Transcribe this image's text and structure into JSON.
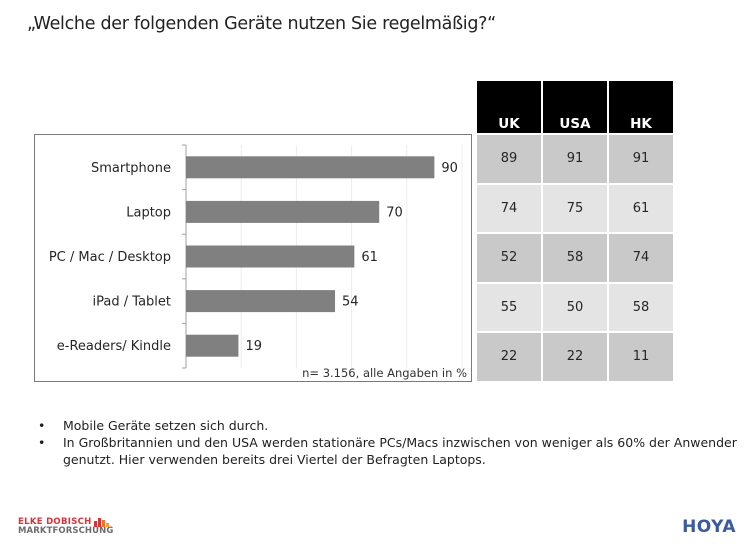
{
  "title": "„Welche der folgenden Geräte nutzen Sie regelmäßig?“",
  "chart_data": {
    "type": "bar",
    "orientation": "horizontal",
    "title": "„Welche der folgenden Geräte nutzen Sie regelmäßig?“",
    "categories": [
      "Smartphone",
      "Laptop",
      "PC / Mac / Desktop",
      "iPad / Tablet",
      "e-Readers/ Kindle"
    ],
    "values": [
      90,
      70,
      61,
      54,
      19
    ],
    "xlabel": "",
    "ylabel": "",
    "xlim": [
      0,
      100
    ],
    "grid": true,
    "grid_step": 20,
    "legend": "none",
    "bar_color": "#808080",
    "note": "n= 3.156, alle Angaben in %"
  },
  "table": {
    "columns": [
      "UK",
      "USA",
      "HK"
    ],
    "rows": [
      {
        "category": "Smartphone",
        "values": [
          "89",
          "91",
          "91"
        ]
      },
      {
        "category": "Laptop",
        "values": [
          "74",
          "75",
          "61"
        ]
      },
      {
        "category": "PC / Mac / Desktop",
        "values": [
          "52",
          "58",
          "74"
        ]
      },
      {
        "category": "iPad / Tablet",
        "values": [
          "55",
          "50",
          "58"
        ]
      },
      {
        "category": "e-Readers/ Kindle",
        "values": [
          "22",
          "22",
          "11"
        ]
      }
    ]
  },
  "bullets": [
    "Mobile Geräte setzen sich durch.",
    "In Großbritannien und den USA werden stationäre PCs/Macs inzwischen von weniger als 60% der Anwender genutzt. Hier verwenden bereits drei Viertel der Befragten Laptops."
  ],
  "logos": {
    "left_line1": "ELKE DOBISCH",
    "left_line2": "MARKTFORSCHUNG",
    "right": "HOYA"
  },
  "colors": {
    "bar": "#808080",
    "table_header": "#000000",
    "table_row_dark": "#c9c9c9",
    "table_row_light": "#e4e4e4",
    "logo_red": "#d7333a",
    "logo_blue": "#3b5aa0"
  }
}
